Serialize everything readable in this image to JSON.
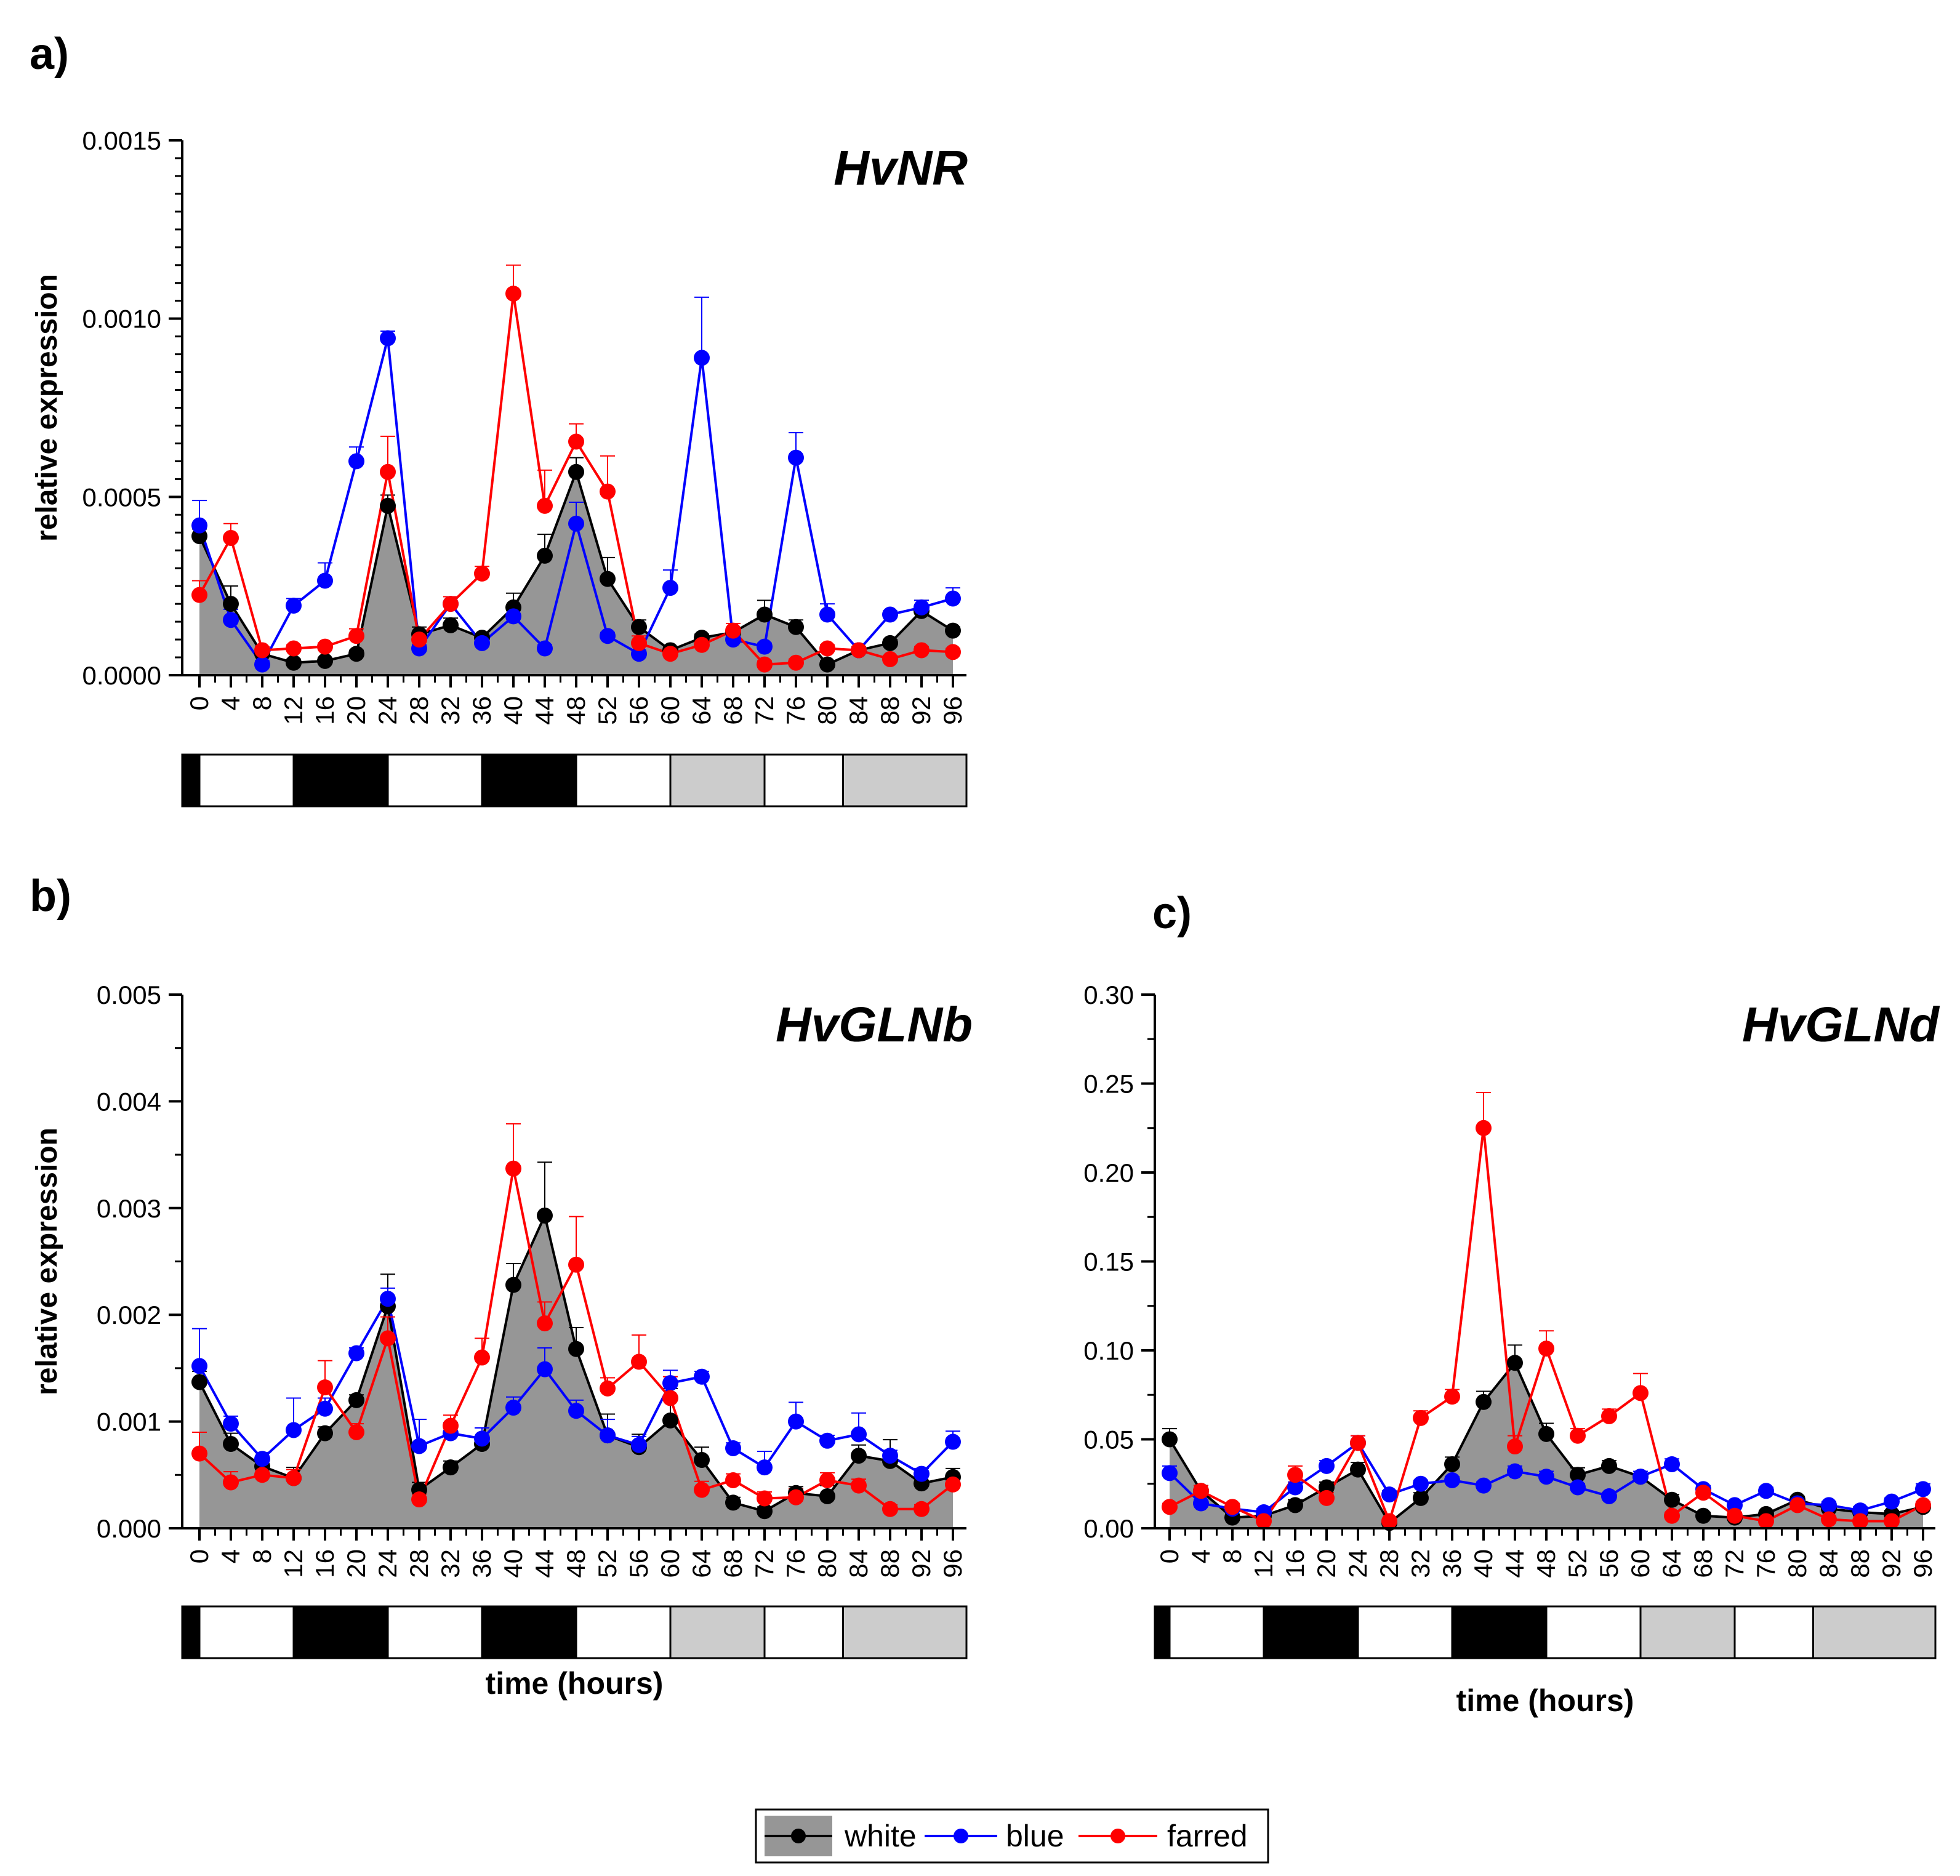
{
  "legend": {
    "entries": [
      "white",
      "blue",
      "farred"
    ]
  },
  "colors": {
    "white": "#000000",
    "blue": "#0000ff",
    "farred": "#ff0000",
    "area_fill": "#969696",
    "light_box": "#ffffff",
    "dark_box": "#000000",
    "grey_box": "#cccccc"
  },
  "chart_data": [
    {
      "panel": "a)",
      "type": "line",
      "title": "HvNR",
      "ylabel": "relative expression",
      "xlabel": "",
      "x": [
        0,
        4,
        8,
        12,
        16,
        20,
        24,
        28,
        32,
        36,
        40,
        44,
        48,
        52,
        56,
        60,
        64,
        68,
        72,
        76,
        80,
        84,
        88,
        92,
        96
      ],
      "ylim": [
        0,
        0.0015
      ],
      "yticks": [
        "0.0000",
        "0.0005",
        "0.0010",
        "0.0015"
      ],
      "light_bar": [
        "dark",
        "light",
        "dark",
        "light",
        "dark",
        "light",
        "grey",
        "light",
        "grey"
      ],
      "light_bar_bounds": [
        -2,
        0,
        12,
        24,
        36,
        48,
        60,
        72,
        82,
        96
      ],
      "series": [
        {
          "name": "white",
          "area": true,
          "values": [
            0.00039,
            0.0002,
            6e-05,
            3.5e-05,
            4e-05,
            6e-05,
            0.000475,
            0.000115,
            0.00014,
            0.000105,
            0.00019,
            0.000335,
            0.00057,
            0.00027,
            0.000135,
            7e-05,
            0.000105,
            0.00012,
            0.00017,
            0.000135,
            3e-05,
            7e-05,
            9e-05,
            0.00018,
            0.000125
          ],
          "errors": [
            2e-05,
            5e-05,
            1e-05,
            1e-05,
            1e-05,
            1e-05,
            3e-05,
            2e-05,
            2e-05,
            1e-05,
            4e-05,
            6e-05,
            4e-05,
            6e-05,
            2e-05,
            1e-05,
            1e-05,
            1e-05,
            4e-05,
            2e-05,
            1e-05,
            1e-05,
            1e-05,
            3e-05,
            1e-05
          ]
        },
        {
          "name": "blue",
          "values": [
            0.00042,
            0.000155,
            3e-05,
            0.000195,
            0.000265,
            0.0006,
            0.000945,
            7.5e-05,
            0.0002,
            9e-05,
            0.000165,
            7.5e-05,
            0.000425,
            0.00011,
            6e-05,
            0.000245,
            0.00089,
            0.0001,
            8e-05,
            0.00061,
            0.00017,
            7e-05,
            0.00017,
            0.00019,
            0.000215
          ],
          "errors": [
            7e-05,
            3e-05,
            1e-05,
            2e-05,
            5e-05,
            4e-05,
            2e-05,
            1e-05,
            2e-05,
            2e-05,
            3e-05,
            1e-05,
            6e-05,
            1e-05,
            1e-05,
            5e-05,
            0.00017,
            1e-05,
            1e-05,
            7e-05,
            3e-05,
            1e-05,
            1e-05,
            2e-05,
            3e-05
          ]
        },
        {
          "name": "farred",
          "values": [
            0.000225,
            0.000385,
            7e-05,
            7.5e-05,
            8e-05,
            0.00011,
            0.00057,
            0.0001,
            0.0002,
            0.000285,
            0.00107,
            0.000475,
            0.000655,
            0.000515,
            9e-05,
            6e-05,
            8.5e-05,
            0.000125,
            3e-05,
            3.5e-05,
            7.5e-05,
            7e-05,
            4.5e-05,
            7e-05,
            6.5e-05
          ],
          "errors": [
            4e-05,
            4e-05,
            1e-05,
            1e-05,
            1e-05,
            2e-05,
            0.0001,
            2e-05,
            2e-05,
            2e-05,
            8e-05,
            0.0001,
            5e-05,
            0.0001,
            2e-05,
            1e-05,
            2e-05,
            2e-05,
            1e-05,
            1e-05,
            1e-05,
            1e-05,
            1e-05,
            1e-05,
            1e-05
          ]
        }
      ]
    },
    {
      "panel": "b)",
      "type": "line",
      "title": "HvGLNb",
      "ylabel": "relative expression",
      "xlabel": "time (hours)",
      "x": [
        0,
        4,
        8,
        12,
        16,
        20,
        24,
        28,
        32,
        36,
        40,
        44,
        48,
        52,
        56,
        60,
        64,
        68,
        72,
        76,
        80,
        84,
        88,
        92,
        96
      ],
      "ylim": [
        0,
        0.005
      ],
      "yticks": [
        "0.000",
        "0.001",
        "0.002",
        "0.003",
        "0.004",
        "0.005"
      ],
      "light_bar": [
        "dark",
        "light",
        "dark",
        "light",
        "dark",
        "light",
        "grey",
        "light",
        "grey"
      ],
      "light_bar_bounds": [
        -2,
        0,
        12,
        24,
        36,
        48,
        60,
        72,
        82,
        96
      ],
      "series": [
        {
          "name": "white",
          "area": true,
          "values": [
            0.00137,
            0.00079,
            0.00058,
            0.00047,
            0.00089,
            0.0012,
            0.00208,
            0.00036,
            0.00057,
            0.00079,
            0.00228,
            0.00293,
            0.00168,
            0.00087,
            0.00076,
            0.00101,
            0.00064,
            0.00024,
            0.00016,
            0.00033,
            0.0003,
            0.00068,
            0.00063,
            0.00042,
            0.00048
          ],
          "errors": [
            0.0001,
            0.0001,
            6e-05,
            0.0001,
            6e-05,
            5e-05,
            0.0003,
            7e-05,
            6e-05,
            7e-05,
            0.0002,
            0.0005,
            0.0002,
            0.0002,
            0.00012,
            0.0003,
            0.00012,
            5e-05,
            4e-05,
            6e-05,
            0.0001,
            0.0001,
            0.0002,
            8e-05,
            8e-05
          ]
        },
        {
          "name": "blue",
          "values": [
            0.00152,
            0.00098,
            0.00065,
            0.00092,
            0.00112,
            0.00164,
            0.00215,
            0.00077,
            0.00089,
            0.00084,
            0.00113,
            0.00149,
            0.0011,
            0.00087,
            0.00078,
            0.00136,
            0.00142,
            0.00075,
            0.00057,
            0.001,
            0.00082,
            0.00088,
            0.00068,
            0.00051,
            0.00081
          ],
          "errors": [
            0.00035,
            7e-05,
            6e-05,
            0.0003,
            0.0001,
            5e-05,
            0.0001,
            0.00025,
            0.0001,
            0.0001,
            0.0001,
            0.0002,
            0.0001,
            0.00015,
            8e-05,
            0.00012,
            5e-05,
            5e-05,
            0.00015,
            0.00018,
            5e-05,
            0.0002,
            5e-05,
            5e-05,
            0.0001
          ]
        },
        {
          "name": "farred",
          "values": [
            0.0007,
            0.00043,
            0.0005,
            0.00047,
            0.00132,
            0.0009,
            0.00178,
            0.00027,
            0.00096,
            0.0016,
            0.00337,
            0.00192,
            0.00247,
            0.00131,
            0.00156,
            0.00122,
            0.00036,
            0.00045,
            0.00028,
            0.00029,
            0.00045,
            0.0004,
            0.00018,
            0.00018,
            0.00041
          ],
          "errors": [
            0.0002,
            0.0001,
            7e-05,
            8e-05,
            0.00025,
            8e-05,
            0.0002,
            5e-05,
            0.0001,
            0.00018,
            0.00042,
            0.0002,
            0.00045,
            0.0001,
            0.00025,
            0.0002,
            8e-05,
            6e-05,
            6e-05,
            8e-05,
            7e-05,
            6e-05,
            4e-05,
            4e-05,
            7e-05
          ]
        }
      ]
    },
    {
      "panel": "c)",
      "type": "line",
      "title": "HvGLNd",
      "ylabel": "",
      "xlabel": "time (hours)",
      "x": [
        0,
        4,
        8,
        12,
        16,
        20,
        24,
        28,
        32,
        36,
        40,
        44,
        48,
        52,
        56,
        60,
        64,
        68,
        72,
        76,
        80,
        84,
        88,
        92,
        96
      ],
      "ylim": [
        0,
        0.3
      ],
      "yticks": [
        "0.00",
        "0.05",
        "0.10",
        "0.15",
        "0.20",
        "0.25",
        "0.30"
      ],
      "light_bar": [
        "dark",
        "light",
        "dark",
        "light",
        "dark",
        "light",
        "grey",
        "light",
        "grey"
      ],
      "light_bar_bounds": [
        -2,
        0,
        12,
        24,
        36,
        48,
        60,
        72,
        82,
        96
      ],
      "series": [
        {
          "name": "white",
          "area": true,
          "values": [
            0.05,
            0.021,
            0.006,
            0.007,
            0.013,
            0.023,
            0.033,
            0.003,
            0.017,
            0.036,
            0.071,
            0.093,
            0.053,
            0.03,
            0.035,
            0.029,
            0.016,
            0.007,
            0.006,
            0.008,
            0.016,
            0.011,
            0.009,
            0.008,
            0.012
          ],
          "errors": [
            0.006,
            0.003,
            0.002,
            0.002,
            0.003,
            0.003,
            0.004,
            0.001,
            0.003,
            0.004,
            0.006,
            0.01,
            0.006,
            0.004,
            0.003,
            0.003,
            0.003,
            0.002,
            0.001,
            0.002,
            0.002,
            0.002,
            0.002,
            0.002,
            0.002
          ]
        },
        {
          "name": "blue",
          "values": [
            0.031,
            0.014,
            0.011,
            0.009,
            0.023,
            0.035,
            0.048,
            0.019,
            0.025,
            0.027,
            0.024,
            0.032,
            0.029,
            0.023,
            0.018,
            0.029,
            0.036,
            0.022,
            0.013,
            0.021,
            0.014,
            0.013,
            0.01,
            0.015,
            0.022
          ],
          "errors": [
            0.004,
            0.002,
            0.002,
            0.002,
            0.003,
            0.003,
            0.004,
            0.002,
            0.002,
            0.002,
            0.002,
            0.003,
            0.003,
            0.002,
            0.002,
            0.003,
            0.003,
            0.002,
            0.002,
            0.002,
            0.002,
            0.002,
            0.002,
            0.002,
            0.003
          ]
        },
        {
          "name": "farred",
          "values": [
            0.012,
            0.021,
            0.012,
            0.004,
            0.03,
            0.017,
            0.048,
            0.004,
            0.062,
            0.074,
            0.225,
            0.046,
            0.101,
            0.052,
            0.063,
            0.076,
            0.007,
            0.02,
            0.007,
            0.004,
            0.013,
            0.005,
            0.004,
            0.004,
            0.013
          ],
          "errors": [
            0.002,
            0.003,
            0.002,
            0.001,
            0.005,
            0.003,
            0.004,
            0.001,
            0.004,
            0.004,
            0.02,
            0.006,
            0.01,
            0.004,
            0.004,
            0.011,
            0.002,
            0.003,
            0.002,
            0.001,
            0.002,
            0.001,
            0.001,
            0.001,
            0.002
          ]
        }
      ]
    }
  ]
}
